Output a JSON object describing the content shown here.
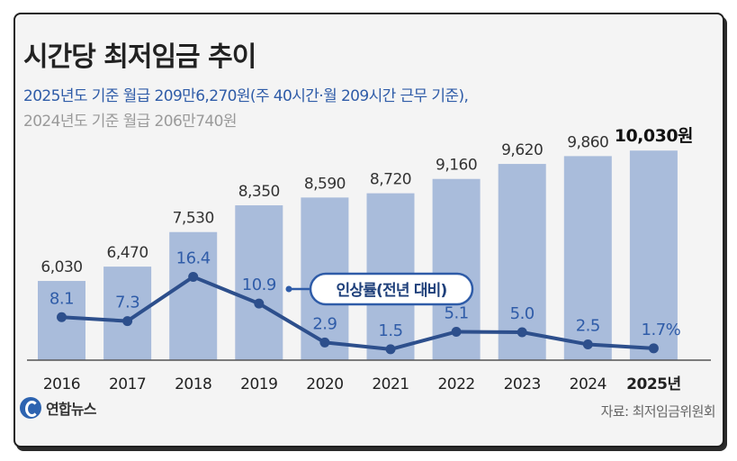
{
  "title": "시간당 최저임금 추이",
  "subtitle_line1": "2025년도 기준 월급 209만6,270원(주 40시간·월 209시간 근무 기준),",
  "subtitle_line2": "2024년도 기준 월급 206만740원",
  "logo_text": "연합뉴스",
  "source": "자료: 최저임금위원회",
  "colors": {
    "bar": "#a9bcdb",
    "bar_highlight": "#a9bcdb",
    "line": "#2d4f8c",
    "label_line": "#2f5ca8",
    "text": "#333333"
  },
  "chart_data": {
    "type": "bar",
    "title": "시간당 최저임금 추이",
    "categories": [
      "2016",
      "2017",
      "2018",
      "2019",
      "2020",
      "2021",
      "2022",
      "2023",
      "2024",
      "2025년"
    ],
    "bar_labels": [
      "6,030",
      "6,470",
      "7,530",
      "8,350",
      "8,590",
      "8,720",
      "9,160",
      "9,620",
      "9,860",
      "10,030원"
    ],
    "series": [
      {
        "name": "최저임금",
        "values": [
          6030,
          6470,
          7530,
          8350,
          8590,
          8720,
          9160,
          9620,
          9860,
          10030
        ]
      },
      {
        "name": "인상률(전년 대비)",
        "values": [
          8.1,
          7.3,
          16.4,
          10.9,
          2.9,
          1.5,
          5.1,
          5.0,
          2.5,
          1.7
        ]
      }
    ],
    "line_labels": [
      "8.1",
      "7.3",
      "16.4",
      "10.9",
      "2.9",
      "1.5",
      "5.1",
      "5.0",
      "2.5",
      "1.7%"
    ],
    "line_callout": "인상률(전년 대비)"
  }
}
